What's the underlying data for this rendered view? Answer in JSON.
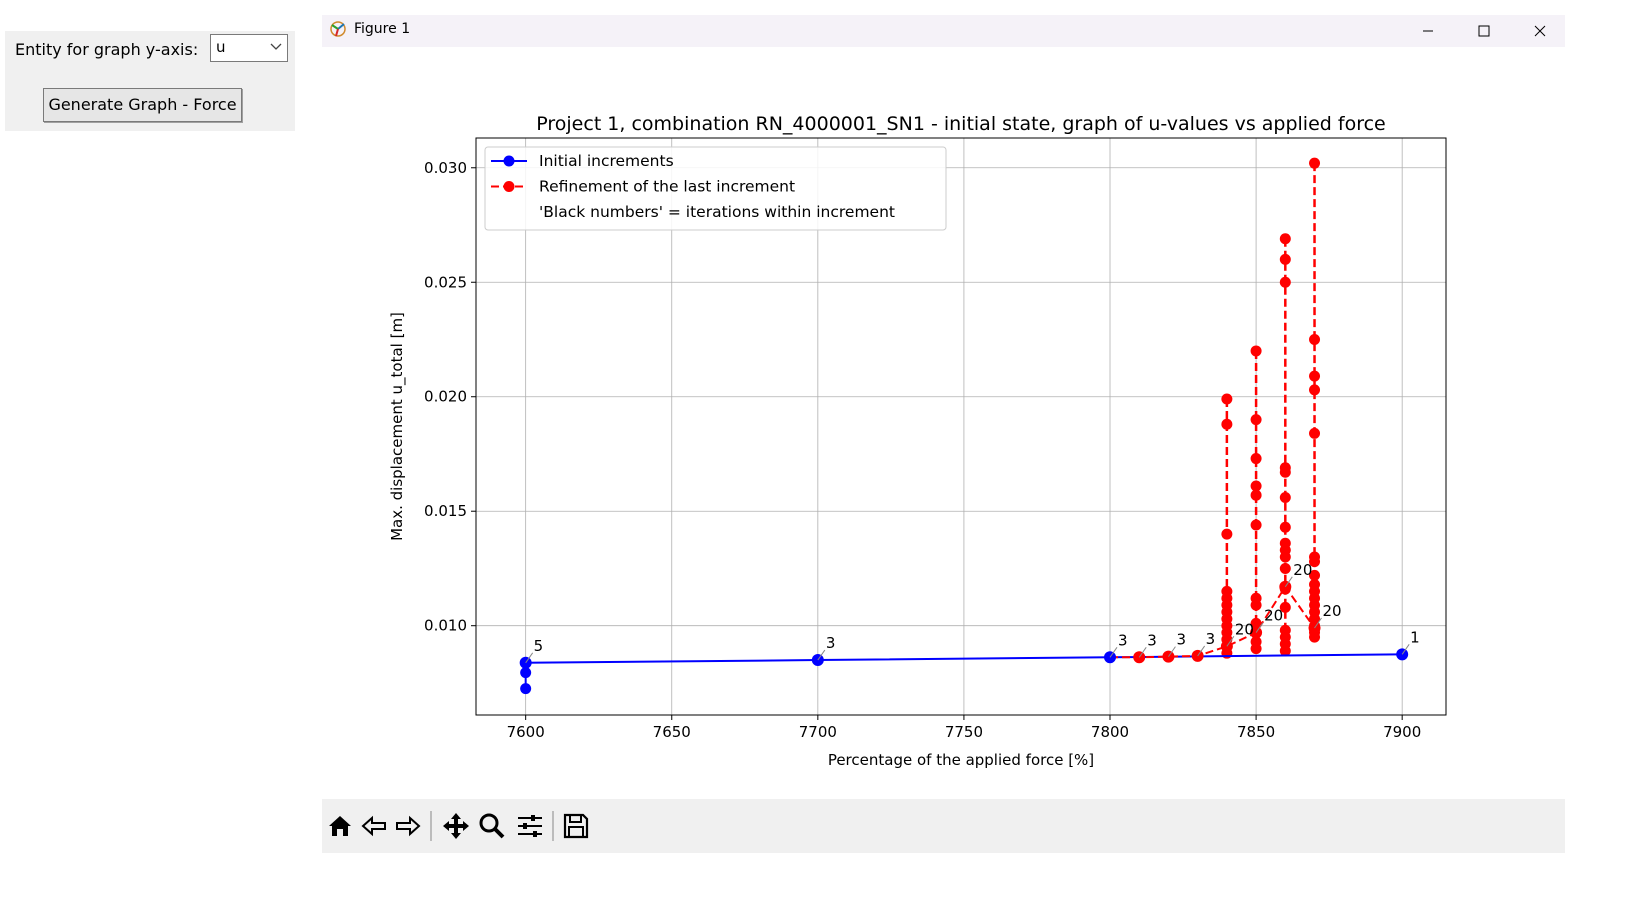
{
  "controls": {
    "entity_label": "Entity for graph y-axis:",
    "entity_value": "u",
    "generate_button": "Generate Graph - Force"
  },
  "window": {
    "title": "Figure 1",
    "minimize": "—",
    "maximize": "☐",
    "close": "✕"
  },
  "colors": {
    "initial": "#0000ff",
    "refinement": "#ff0000",
    "window_bg": "#f0f0f0"
  },
  "toolbar_icons": [
    "home-icon",
    "back-arrow-icon",
    "forward-arrow-icon",
    "pan-icon",
    "zoom-icon",
    "configure-subplots-icon",
    "save-icon"
  ],
  "chart_data": {
    "type": "line",
    "title": "Project 1, combination RN_4000001_SN1 - initial state, graph of u-values vs applied force",
    "xlabel": "Percentage of the applied force [%]",
    "ylabel": "Max. displacement u_total [m]",
    "xlim": [
      7583,
      7915
    ],
    "ylim": [
      0.0061,
      0.0313
    ],
    "xticks": [
      7600,
      7650,
      7700,
      7750,
      7800,
      7850,
      7900
    ],
    "yticks": [
      0.01,
      0.015,
      0.02,
      0.025,
      0.03
    ],
    "ytick_labels": [
      "0.010",
      "0.015",
      "0.020",
      "0.025",
      "0.030"
    ],
    "grid": true,
    "legend_placement": "upper left",
    "legend": [
      {
        "label": "Initial increments",
        "style": "solid",
        "color": "#0000ff"
      },
      {
        "label": "Refinement of the last increment",
        "style": "dashed",
        "color": "#ff0000"
      },
      {
        "label": "'Black numbers' = iterations within increment",
        "style": "none",
        "color": ""
      }
    ],
    "series": [
      {
        "name": "Initial increments",
        "color": "#0000ff",
        "style": "solid",
        "x": [
          7600,
          7700,
          7800,
          7900
        ],
        "y": [
          0.00838,
          0.0085,
          0.00862,
          0.00875
        ]
      },
      {
        "name": "Refinement of the last increment",
        "color": "#ff0000",
        "style": "dashed",
        "x": [
          7800,
          7810,
          7820,
          7830,
          7840,
          7850,
          7860,
          7870
        ],
        "y": [
          0.00862,
          0.00862,
          0.00865,
          0.00868,
          0.0091,
          0.0097,
          0.0117,
          0.0099
        ]
      }
    ],
    "initial_iterations": [
      {
        "x": 7600,
        "y": [
          0.00838,
          0.00795,
          0.00725
        ]
      }
    ],
    "refinement_iterations": [
      {
        "x": 7840,
        "y": [
          0.0199,
          0.0188,
          0.014,
          0.0115,
          0.0112,
          0.0109,
          0.0106,
          0.0103,
          0.01,
          0.0097,
          0.0094,
          0.0091,
          0.0088
        ]
      },
      {
        "x": 7850,
        "y": [
          0.022,
          0.019,
          0.0173,
          0.0161,
          0.0157,
          0.0144,
          0.0112,
          0.0109,
          0.0101,
          0.0097,
          0.0093,
          0.009
        ]
      },
      {
        "x": 7860,
        "y": [
          0.0269,
          0.026,
          0.025,
          0.0169,
          0.0167,
          0.0156,
          0.0143,
          0.0136,
          0.0133,
          0.013,
          0.0125,
          0.0116,
          0.0108,
          0.0098,
          0.0095,
          0.0092,
          0.0089
        ]
      },
      {
        "x": 7870,
        "y": [
          0.0302,
          0.0225,
          0.0209,
          0.0203,
          0.0184,
          0.013,
          0.0128,
          0.0122,
          0.0118,
          0.0115,
          0.0112,
          0.0109,
          0.0106,
          0.0103,
          0.01,
          0.0097,
          0.0095
        ]
      }
    ],
    "annotations": [
      {
        "text": "5",
        "x": 7600,
        "y": 0.00838
      },
      {
        "text": "3",
        "x": 7700,
        "y": 0.0085
      },
      {
        "text": "3",
        "x": 7800,
        "y": 0.00862
      },
      {
        "text": "3",
        "x": 7810,
        "y": 0.00862
      },
      {
        "text": "3",
        "x": 7820,
        "y": 0.00865
      },
      {
        "text": "3",
        "x": 7830,
        "y": 0.00868
      },
      {
        "text": "20",
        "x": 7840,
        "y": 0.0091
      },
      {
        "text": "20",
        "x": 7850,
        "y": 0.0097
      },
      {
        "text": "20",
        "x": 7860,
        "y": 0.0117
      },
      {
        "text": "20",
        "x": 7870,
        "y": 0.0099
      },
      {
        "text": "1",
        "x": 7900,
        "y": 0.00875
      }
    ]
  }
}
